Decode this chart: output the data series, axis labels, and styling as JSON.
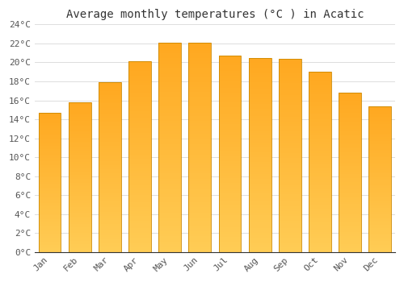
{
  "title": "Average monthly temperatures (°C ) in Acatic",
  "months": [
    "Jan",
    "Feb",
    "Mar",
    "Apr",
    "May",
    "Jun",
    "Jul",
    "Aug",
    "Sep",
    "Oct",
    "Nov",
    "Dec"
  ],
  "temperatures": [
    14.7,
    15.8,
    17.9,
    20.1,
    22.1,
    22.1,
    20.7,
    20.5,
    20.4,
    19.0,
    16.8,
    15.4
  ],
  "bar_color_top": "#FFA820",
  "bar_color_bottom": "#FFCC55",
  "bar_edge_color": "#CC8800",
  "background_color": "#FFFFFF",
  "plot_bg_color": "#FFFFFF",
  "grid_color": "#DDDDDD",
  "ylim": [
    0,
    24
  ],
  "yticks": [
    0,
    2,
    4,
    6,
    8,
    10,
    12,
    14,
    16,
    18,
    20,
    22,
    24
  ],
  "title_fontsize": 10,
  "tick_fontsize": 8,
  "title_color": "#333333",
  "tick_color": "#555555",
  "bar_width": 0.75,
  "n_grad": 80
}
